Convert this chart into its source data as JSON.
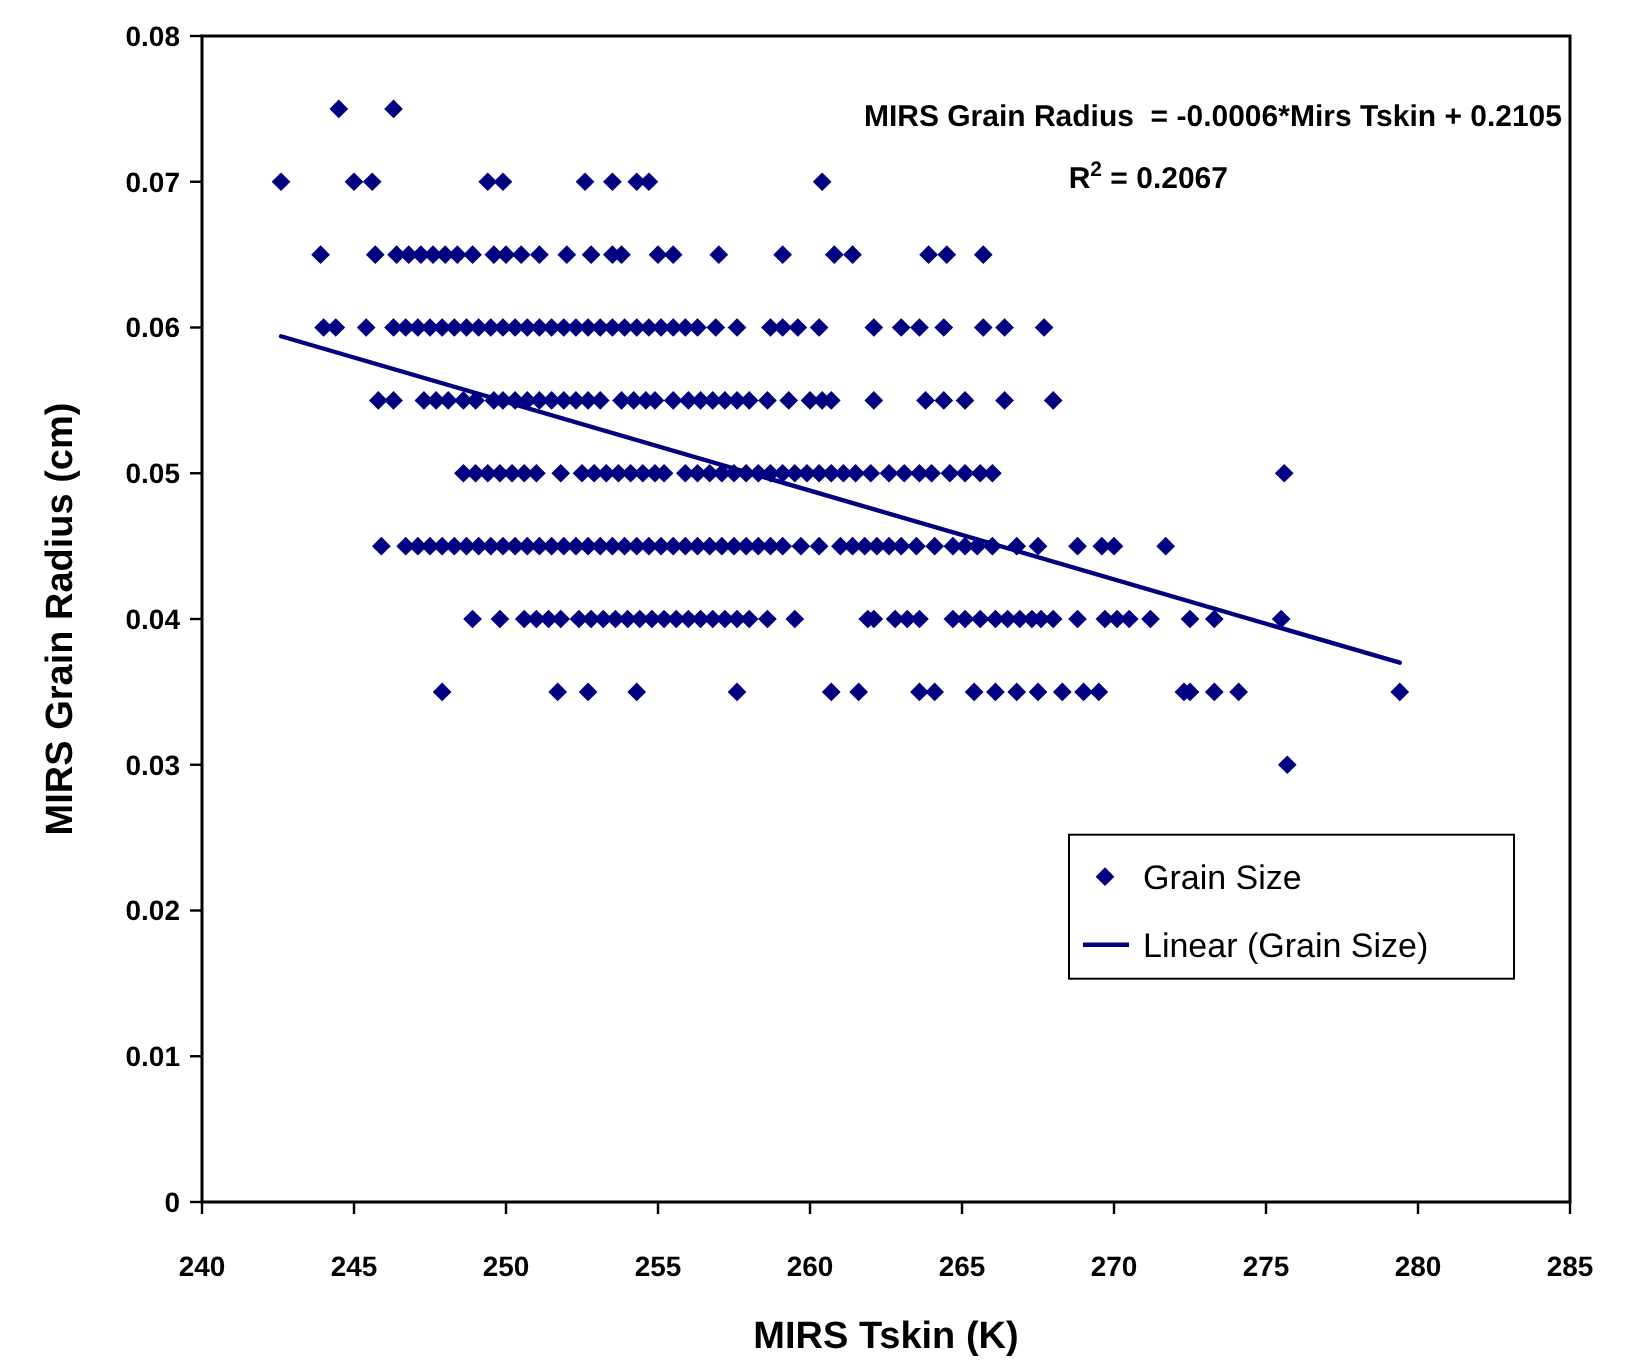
{
  "chart_data": {
    "type": "scatter",
    "xlabel": "MIRS Tskin (K)",
    "ylabel": "MIRS Grain Radius (cm)",
    "annotations": [
      "MIRS Grain Radius  = -0.0006*Mirs Tskin + 0.2105",
      "R$^{2}$ = 0.2067"
    ],
    "xlim": [
      240,
      285
    ],
    "xticks": [
      240,
      245,
      250,
      255,
      260,
      265,
      270,
      275,
      280,
      285
    ],
    "ylim": [
      0,
      0.08
    ],
    "yticks": [
      0,
      0.01,
      0.02,
      0.03,
      0.04,
      0.05,
      0.06,
      0.07,
      0.08
    ],
    "legend": "right",
    "series": [
      {
        "name": "Grain Size",
        "type": "scatter",
        "color": "#000080",
        "marker": "diamond",
        "x": [
          244.5,
          246.3,
          242.6,
          245.0,
          245.6,
          249.4,
          249.9,
          252.6,
          253.5,
          254.3,
          254.7,
          260.4,
          243.9,
          245.7,
          246.4,
          246.8,
          247.2,
          247.6,
          248.0,
          248.4,
          248.9,
          249.6,
          250.0,
          250.5,
          251.1,
          252.0,
          252.8,
          253.5,
          253.8,
          255.0,
          255.5,
          257.0,
          259.1,
          260.8,
          261.4,
          263.9,
          264.5,
          265.7,
          244.0,
          244.4,
          245.4,
          246.3,
          246.7,
          247.1,
          247.5,
          247.9,
          248.3,
          248.7,
          249.1,
          249.5,
          249.9,
          250.3,
          250.7,
          251.1,
          251.5,
          251.9,
          252.3,
          252.7,
          253.1,
          253.5,
          253.9,
          254.3,
          254.7,
          255.1,
          255.5,
          255.9,
          256.3,
          256.9,
          257.6,
          258.7,
          259.1,
          259.6,
          260.3,
          262.1,
          263.0,
          263.6,
          264.4,
          265.7,
          266.4,
          267.7,
          245.8,
          246.3,
          247.3,
          247.7,
          248.1,
          248.6,
          249.0,
          249.6,
          249.9,
          250.3,
          250.7,
          251.1,
          251.5,
          251.9,
          252.3,
          252.7,
          253.1,
          253.8,
          254.2,
          254.6,
          254.9,
          255.5,
          256.0,
          256.4,
          256.8,
          257.2,
          257.6,
          258.0,
          258.6,
          259.3,
          260.0,
          260.4,
          260.7,
          262.1,
          263.8,
          264.4,
          265.1,
          266.4,
          268.0,
          248.6,
          249.0,
          249.4,
          249.8,
          250.2,
          250.6,
          251.0,
          251.8,
          252.5,
          252.9,
          253.3,
          253.7,
          254.1,
          254.5,
          254.9,
          255.2,
          255.9,
          256.3,
          256.7,
          257.1,
          257.5,
          257.9,
          258.3,
          258.7,
          259.1,
          259.5,
          259.9,
          260.3,
          260.7,
          261.1,
          261.5,
          262.0,
          262.6,
          263.1,
          263.6,
          264.0,
          264.6,
          265.1,
          265.6,
          266.0,
          275.6,
          245.9,
          246.7,
          247.1,
          247.5,
          247.9,
          248.3,
          248.7,
          249.1,
          249.5,
          249.9,
          250.3,
          250.7,
          251.1,
          251.5,
          251.9,
          252.3,
          252.7,
          253.1,
          253.5,
          253.9,
          254.3,
          254.7,
          255.1,
          255.5,
          255.9,
          256.3,
          256.7,
          257.1,
          257.5,
          257.9,
          258.3,
          258.7,
          259.1,
          259.7,
          260.3,
          261.0,
          261.4,
          261.8,
          262.2,
          262.6,
          263.0,
          263.5,
          264.1,
          264.7,
          265.1,
          265.5,
          266.0,
          266.8,
          267.5,
          268.8,
          269.6,
          270.0,
          271.7,
          248.9,
          249.8,
          250.6,
          251.0,
          251.4,
          251.8,
          252.4,
          252.8,
          253.2,
          253.6,
          254.0,
          254.4,
          254.8,
          255.2,
          255.6,
          256.0,
          256.4,
          256.8,
          257.2,
          257.6,
          258.0,
          258.6,
          259.5,
          261.9,
          262.1,
          262.8,
          263.2,
          263.6,
          264.7,
          265.1,
          265.6,
          266.1,
          266.5,
          266.9,
          267.3,
          267.6,
          268.0,
          268.8,
          269.7,
          270.1,
          270.5,
          271.2,
          272.5,
          273.3,
          275.5,
          247.9,
          251.7,
          252.7,
          254.3,
          257.6,
          260.7,
          261.6,
          263.6,
          264.1,
          265.4,
          266.1,
          266.8,
          267.5,
          268.3,
          269.0,
          269.5,
          272.3,
          272.5,
          273.3,
          274.1,
          279.4,
          275.7
        ],
        "values": [
          0.075,
          0.075,
          0.07,
          0.07,
          0.07,
          0.07,
          0.07,
          0.07,
          0.07,
          0.07,
          0.07,
          0.07,
          0.065,
          0.065,
          0.065,
          0.065,
          0.065,
          0.065,
          0.065,
          0.065,
          0.065,
          0.065,
          0.065,
          0.065,
          0.065,
          0.065,
          0.065,
          0.065,
          0.065,
          0.065,
          0.065,
          0.065,
          0.065,
          0.065,
          0.065,
          0.065,
          0.065,
          0.065,
          0.06,
          0.06,
          0.06,
          0.06,
          0.06,
          0.06,
          0.06,
          0.06,
          0.06,
          0.06,
          0.06,
          0.06,
          0.06,
          0.06,
          0.06,
          0.06,
          0.06,
          0.06,
          0.06,
          0.06,
          0.06,
          0.06,
          0.06,
          0.06,
          0.06,
          0.06,
          0.06,
          0.06,
          0.06,
          0.06,
          0.06,
          0.06,
          0.06,
          0.06,
          0.06,
          0.06,
          0.06,
          0.06,
          0.06,
          0.06,
          0.06,
          0.06,
          0.055,
          0.055,
          0.055,
          0.055,
          0.055,
          0.055,
          0.055,
          0.055,
          0.055,
          0.055,
          0.055,
          0.055,
          0.055,
          0.055,
          0.055,
          0.055,
          0.055,
          0.055,
          0.055,
          0.055,
          0.055,
          0.055,
          0.055,
          0.055,
          0.055,
          0.055,
          0.055,
          0.055,
          0.055,
          0.055,
          0.055,
          0.055,
          0.055,
          0.055,
          0.055,
          0.055,
          0.055,
          0.055,
          0.055,
          0.05,
          0.05,
          0.05,
          0.05,
          0.05,
          0.05,
          0.05,
          0.05,
          0.05,
          0.05,
          0.05,
          0.05,
          0.05,
          0.05,
          0.05,
          0.05,
          0.05,
          0.05,
          0.05,
          0.05,
          0.05,
          0.05,
          0.05,
          0.05,
          0.05,
          0.05,
          0.05,
          0.05,
          0.05,
          0.05,
          0.05,
          0.05,
          0.05,
          0.05,
          0.05,
          0.05,
          0.05,
          0.05,
          0.05,
          0.05,
          0.05,
          0.045,
          0.045,
          0.045,
          0.045,
          0.045,
          0.045,
          0.045,
          0.045,
          0.045,
          0.045,
          0.045,
          0.045,
          0.045,
          0.045,
          0.045,
          0.045,
          0.045,
          0.045,
          0.045,
          0.045,
          0.045,
          0.045,
          0.045,
          0.045,
          0.045,
          0.045,
          0.045,
          0.045,
          0.045,
          0.045,
          0.045,
          0.045,
          0.045,
          0.045,
          0.045,
          0.045,
          0.045,
          0.045,
          0.045,
          0.045,
          0.045,
          0.045,
          0.045,
          0.045,
          0.045,
          0.045,
          0.045,
          0.045,
          0.045,
          0.045,
          0.045,
          0.045,
          0.045,
          0.04,
          0.04,
          0.04,
          0.04,
          0.04,
          0.04,
          0.04,
          0.04,
          0.04,
          0.04,
          0.04,
          0.04,
          0.04,
          0.04,
          0.04,
          0.04,
          0.04,
          0.04,
          0.04,
          0.04,
          0.04,
          0.04,
          0.04,
          0.04,
          0.04,
          0.04,
          0.04,
          0.04,
          0.04,
          0.04,
          0.04,
          0.04,
          0.04,
          0.04,
          0.04,
          0.04,
          0.04,
          0.04,
          0.04,
          0.04,
          0.04,
          0.04,
          0.04,
          0.04,
          0.04,
          0.035,
          0.035,
          0.035,
          0.035,
          0.035,
          0.035,
          0.035,
          0.035,
          0.035,
          0.035,
          0.035,
          0.035,
          0.035,
          0.035,
          0.035,
          0.035,
          0.035,
          0.035,
          0.035,
          0.035,
          0.035,
          0.03
        ]
      },
      {
        "name": "Linear (Grain Size)",
        "type": "line",
        "color": "#000080",
        "marker": "none",
        "line_style": "solid",
        "x": [
          242.6,
          279.4
        ],
        "values": [
          0.0594,
          0.037
        ]
      }
    ]
  }
}
